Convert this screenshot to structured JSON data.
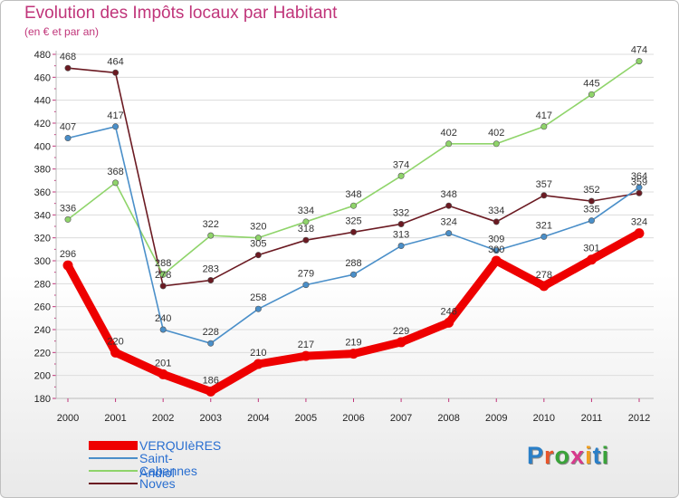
{
  "header": {
    "title": "Evolution des Impôts locaux par Habitant",
    "subtitle": "(en € et par an)"
  },
  "logo": {
    "text": "Proxiti",
    "letter_colors": [
      "#2a7fc8",
      "#e8552a",
      "#3aa33a",
      "#d83a8c",
      "#f0a020",
      "#2a7fc8",
      "#3aa33a"
    ]
  },
  "chart_data": {
    "type": "line",
    "title": "Evolution des Impôts locaux par Habitant",
    "subtitle": "(en € et par an)",
    "x": [
      2000,
      2001,
      2002,
      2003,
      2004,
      2005,
      2006,
      2007,
      2008,
      2009,
      2010,
      2011,
      2012
    ],
    "ylim": [
      180,
      480
    ],
    "yticks": [
      180,
      200,
      220,
      240,
      260,
      280,
      300,
      320,
      340,
      360,
      380,
      400,
      420,
      440,
      460,
      480
    ],
    "grid": "horizontal",
    "legend_position": "bottom-left",
    "series": [
      {
        "name": "Noves",
        "color": "#6b1a22",
        "highlight": false,
        "values": [
          468,
          464,
          278,
          283,
          305,
          318,
          325,
          332,
          348,
          334,
          357,
          352,
          359
        ]
      },
      {
        "name": "Cabannes",
        "color": "#8fd46a",
        "highlight": false,
        "values": [
          336,
          368,
          288,
          322,
          320,
          334,
          348,
          374,
          402,
          402,
          417,
          445,
          474
        ]
      },
      {
        "name": "Saint-Andiol",
        "color": "#4a8fc9",
        "highlight": false,
        "values": [
          407,
          417,
          240,
          228,
          258,
          279,
          288,
          313,
          324,
          309,
          321,
          335,
          364
        ]
      },
      {
        "name": "VERQUIèRES",
        "color": "#ee0000",
        "highlight": true,
        "values": [
          296,
          220,
          201,
          186,
          210,
          217,
          219,
          229,
          246,
          300,
          278,
          301,
          324
        ]
      }
    ]
  }
}
